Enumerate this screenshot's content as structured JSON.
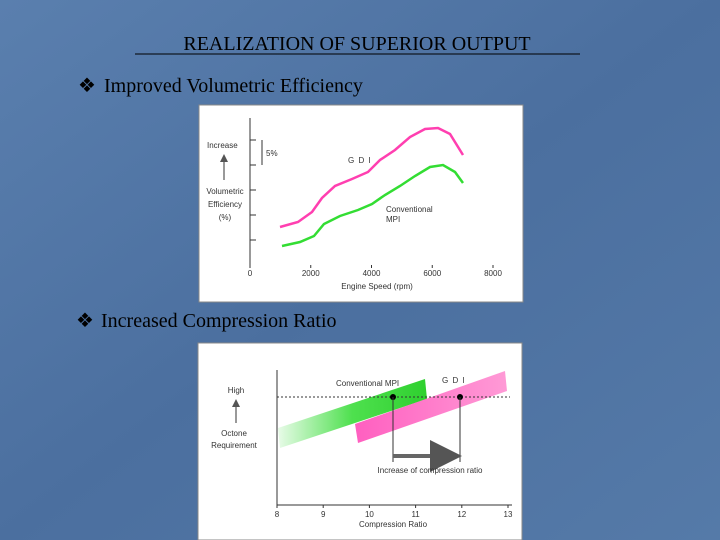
{
  "title": "REALIZATION OF SUPERIOR OUTPUT",
  "bullets": [
    "Improved Volumetric Efficiency",
    "Increased Compression Ratio"
  ],
  "figure1": {
    "y_top_label": "Increase",
    "step_label": "5%",
    "y_label": [
      "Volumetric",
      "Efficiency",
      "(%)"
    ],
    "gdi_label": "G D I",
    "mpi_label": [
      "Conventional",
      "MPI"
    ],
    "xlim": [
      0,
      8000
    ],
    "xticks": [
      0,
      2000,
      4000,
      6000,
      8000
    ],
    "x_label": "Engine Speed (rpm)"
  },
  "figure2": {
    "y_top_label": "High",
    "y_label": [
      "Octone",
      "Requirement"
    ],
    "mpi_label": "Conventional  MPI",
    "gdi_label": "G D I",
    "arrow_label": "Increase of compression ratio",
    "xlim": [
      8,
      13
    ],
    "xticks": [
      8,
      9,
      10,
      11,
      12,
      13
    ],
    "x_label": "Compression Ratio"
  }
}
